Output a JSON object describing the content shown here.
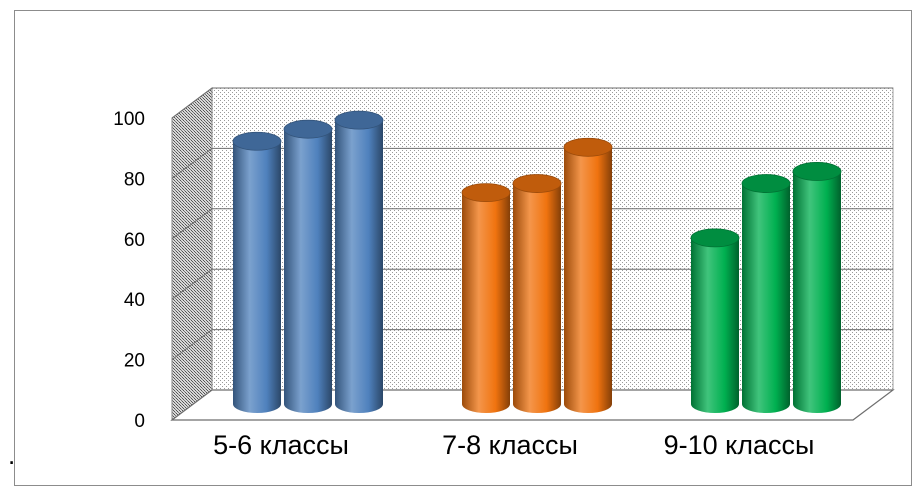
{
  "chart_data": {
    "type": "bar",
    "style": "3d-cylinder",
    "categories": [
      "5-6 классы",
      "7-8 классы",
      "9-10 классы"
    ],
    "series": [
      {
        "values": [
          87,
          70,
          55
        ]
      },
      {
        "values": [
          91,
          73,
          73
        ]
      },
      {
        "values": [
          94,
          85,
          77
        ]
      }
    ],
    "group_colors": [
      "#4f81bd",
      "#f0730f",
      "#00b050"
    ],
    "y_ticks": [
      "0",
      "20",
      "40",
      "60",
      "80",
      "100"
    ],
    "ylim": [
      0,
      100
    ],
    "grid": true,
    "legend": "none",
    "title": "",
    "xlabel": "",
    "ylabel": ""
  },
  "stray_mark": "."
}
